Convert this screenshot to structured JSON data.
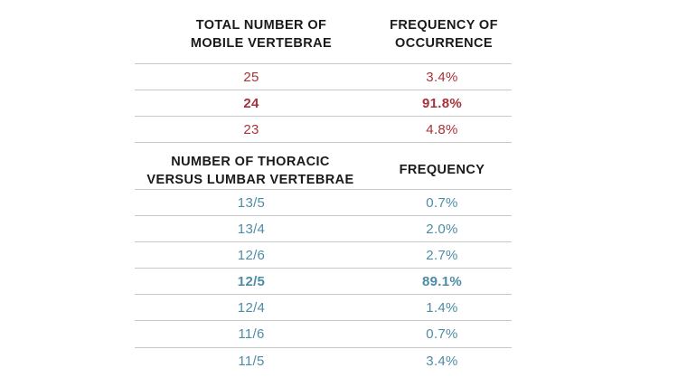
{
  "section1": {
    "header_col1_line1": "TOTAL NUMBER OF",
    "header_col1_line2": "MOBILE VERTEBRAE",
    "header_col2_line1": "FREQUENCY OF",
    "header_col2_line2": "OCCURRENCE",
    "rows": [
      {
        "count": "25",
        "frequency": "3.4%",
        "highlight": false
      },
      {
        "count": "24",
        "frequency": "91.8%",
        "highlight": true
      },
      {
        "count": "23",
        "frequency": "4.8%",
        "highlight": false
      }
    ],
    "accent_color": "#a8323a"
  },
  "section2": {
    "header_col1_line1": "NUMBER OF THORACIC",
    "header_col1_line2": "VERSUS LUMBAR VERTEBRAE",
    "header_col2": "FREQUENCY",
    "rows": [
      {
        "ratio": "13/5",
        "frequency": "0.7%",
        "highlight": false
      },
      {
        "ratio": "13/4",
        "frequency": "2.0%",
        "highlight": false
      },
      {
        "ratio": "12/6",
        "frequency": "2.7%",
        "highlight": false
      },
      {
        "ratio": "12/5",
        "frequency": "89.1%",
        "highlight": true
      },
      {
        "ratio": "12/4",
        "frequency": "1.4%",
        "highlight": false
      },
      {
        "ratio": "11/6",
        "frequency": "0.7%",
        "highlight": false
      },
      {
        "ratio": "11/5",
        "frequency": "3.4%",
        "highlight": false
      }
    ],
    "accent_color": "#4e8ca6"
  }
}
